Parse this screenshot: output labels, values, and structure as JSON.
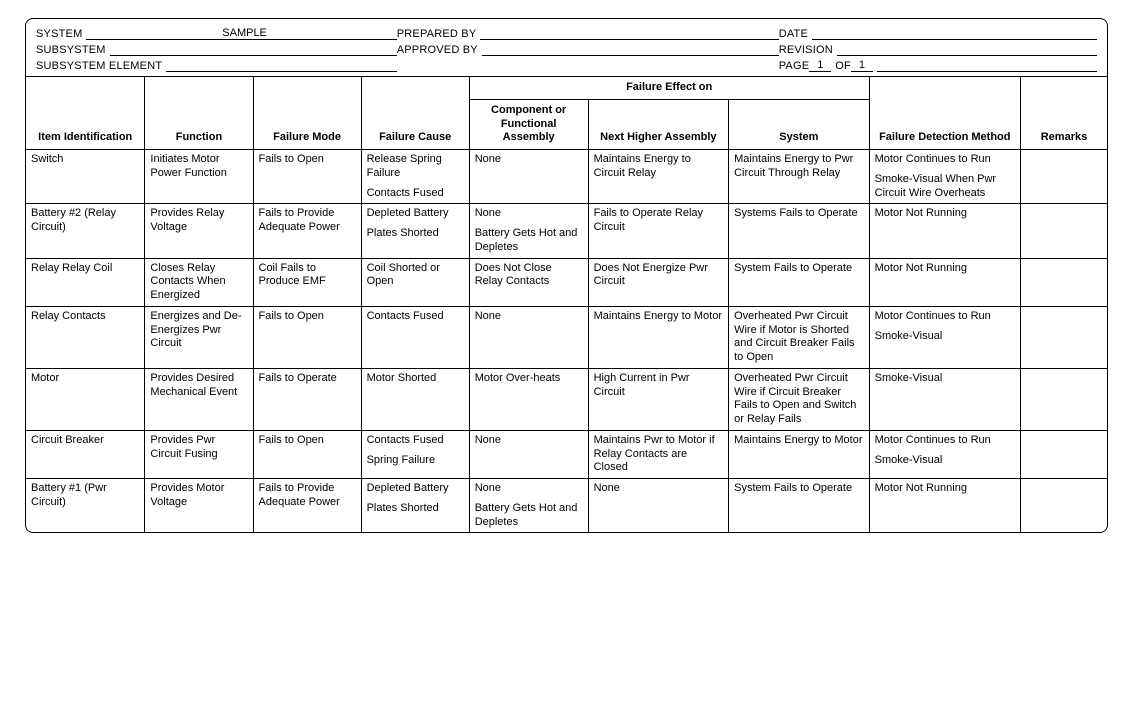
{
  "header": {
    "system_label": "SYSTEM",
    "system_value": "SAMPLE",
    "subsystem_label": "SUBSYSTEM",
    "subsystem_value": "",
    "subsystem_element_label": "SUBSYSTEM ELEMENT",
    "subsystem_element_value": "",
    "prepared_by_label": "PREPARED BY",
    "prepared_by_value": "",
    "approved_by_label": "APPROVED BY",
    "approved_by_value": "",
    "date_label": "DATE",
    "date_value": "",
    "revision_label": "REVISION",
    "revision_value": "",
    "page_label": "PAGE",
    "page_value": "1",
    "of_label": "OF",
    "of_value": "1"
  },
  "columns": {
    "widths_pct": [
      11,
      10,
      10,
      10,
      11,
      13,
      13,
      14,
      8
    ],
    "group_label": "Failure Effect on",
    "item": "Item Identification",
    "function": "Function",
    "mode": "Failure Mode",
    "cause": "Failure Cause",
    "component": "Component or Functional Assembly",
    "next": "Next Higher Assembly",
    "system": "System",
    "detection": "Failure Detection Method",
    "remarks": "Remarks"
  },
  "rows": [
    {
      "item": "Switch",
      "function": "Initiates Motor Power Function",
      "mode": "Fails to Open",
      "cause": [
        "Release Spring Failure",
        "Contacts Fused"
      ],
      "component": "None",
      "next": "Maintains Energy to Circuit Relay",
      "system": "Maintains Energy to Pwr Circuit Through Relay",
      "detection": [
        "Motor Continues to Run",
        "Smoke-Visual When Pwr Circuit Wire Overheats"
      ],
      "remarks": ""
    },
    {
      "item": "Battery #2 (Relay Circuit)",
      "function": "Provides Relay Voltage",
      "mode": "Fails to Provide Adequate Power",
      "cause": [
        "Depleted Battery",
        "Plates Shorted"
      ],
      "component": [
        "None",
        "Battery Gets Hot and Depletes"
      ],
      "next": "Fails to Operate Relay Circuit",
      "system": "Systems Fails to Operate",
      "detection": "Motor Not Running",
      "remarks": ""
    },
    {
      "item": "Relay Relay Coil",
      "function": "Closes Relay Contacts When Energized",
      "mode": "Coil Fails to Produce EMF",
      "cause": "Coil Shorted or Open",
      "component": "Does Not Close Relay Contacts",
      "next": "Does Not Energize Pwr Circuit",
      "system": "System Fails to Operate",
      "detection": "Motor Not Running",
      "remarks": ""
    },
    {
      "item": "Relay Contacts",
      "function": "Energizes and De-Energizes Pwr Circuit",
      "mode": "Fails to Open",
      "cause": "Contacts Fused",
      "component": "None",
      "next": "Maintains Energy to Motor",
      "system": "Overheated Pwr Circuit Wire if Motor is Shorted and Circuit Breaker Fails to Open",
      "detection": [
        "Motor Continues to Run",
        "Smoke-Visual"
      ],
      "remarks": ""
    },
    {
      "item": "Motor",
      "function": "Provides Desired Mechanical Event",
      "mode": "Fails to Operate",
      "cause": "Motor Shorted",
      "component": "Motor Over-heats",
      "next": "High Current in Pwr Circuit",
      "system": "Overheated Pwr Circuit Wire if Circuit Breaker Fails to Open and Switch or Relay Fails",
      "detection": "Smoke-Visual",
      "remarks": ""
    },
    {
      "item": "Circuit Breaker",
      "function": "Provides Pwr Circuit Fusing",
      "mode": "Fails to Open",
      "cause": [
        "Contacts Fused",
        "Spring Failure"
      ],
      "component": "None",
      "next": "Maintains Pwr to Motor if Relay Contacts are Closed",
      "system": "Maintains Energy to Motor",
      "detection": [
        "Motor Continues to Run",
        "Smoke-Visual"
      ],
      "remarks": ""
    },
    {
      "item": "Battery #1 (Pwr Circuit)",
      "function": "Provides Motor Voltage",
      "mode": "Fails to Provide Adequate Power",
      "cause": [
        "Depleted Battery",
        "Plates Shorted"
      ],
      "component": [
        "None",
        "Battery Gets Hot and Depletes"
      ],
      "next": "None",
      "system": "System Fails to Operate",
      "detection": "Motor Not Running",
      "remarks": ""
    }
  ]
}
